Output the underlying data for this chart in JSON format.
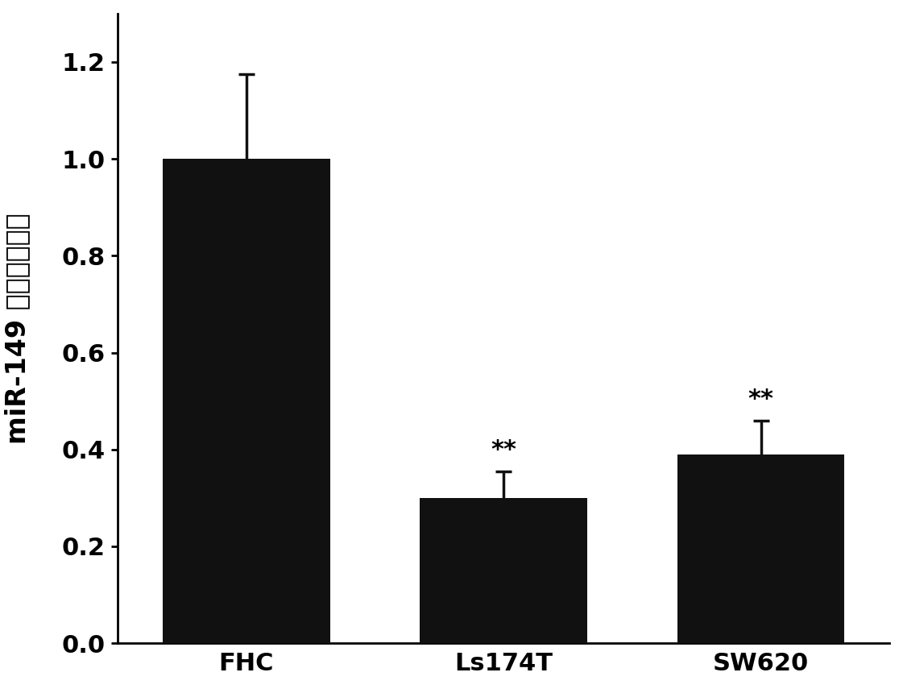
{
  "categories": [
    "FHC",
    "Ls174T",
    "SW620"
  ],
  "values": [
    1.0,
    0.3,
    0.39
  ],
  "errors": [
    0.175,
    0.055,
    0.07
  ],
  "bar_color": "#111111",
  "error_color": "#111111",
  "ylabel_part1": "miR-149 ",
  "ylabel_part2": "相对表达水平",
  "ylim": [
    0,
    1.3
  ],
  "yticks": [
    0.0,
    0.2,
    0.4,
    0.6,
    0.8,
    1.0,
    1.2
  ],
  "significance": [
    "",
    "**",
    "**"
  ],
  "bar_width": 0.65,
  "background_color": "#ffffff",
  "axis_linewidth": 2.0,
  "capsize": 7,
  "ylabel_fontsize": 24,
  "tick_fontsize": 22,
  "sig_fontsize": 22,
  "xlim": [
    -0.5,
    2.5
  ]
}
